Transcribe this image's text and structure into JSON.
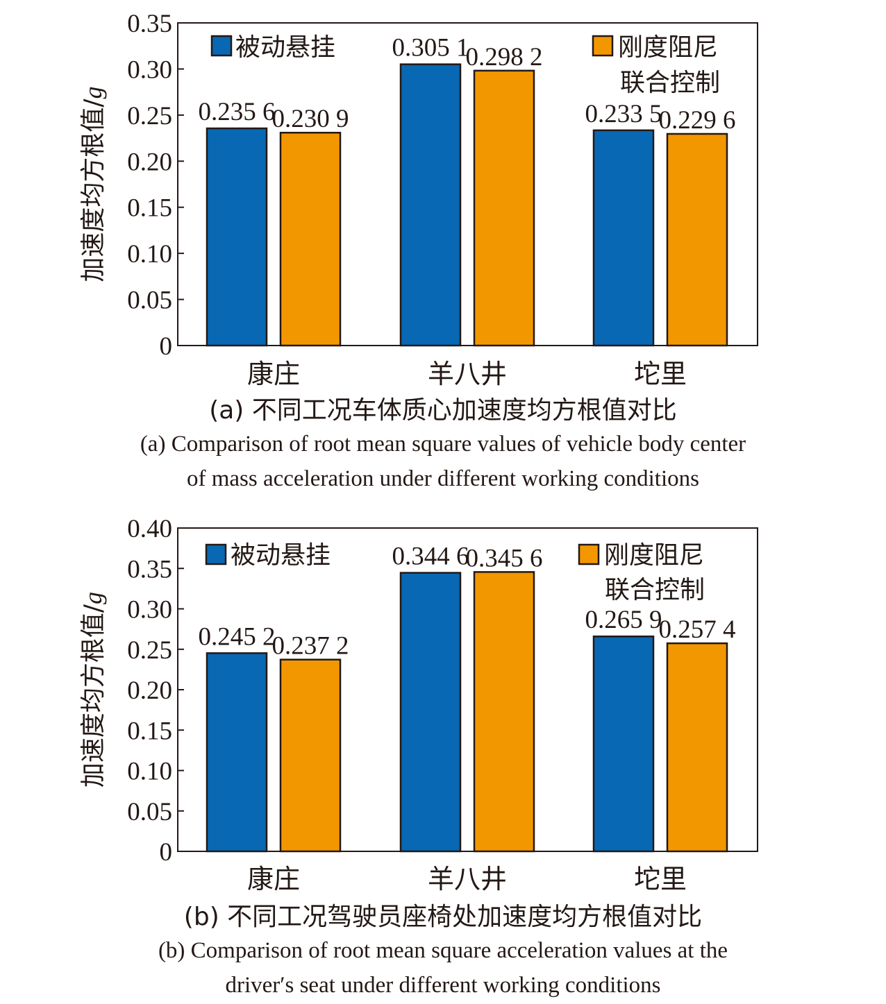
{
  "colors": {
    "passive": "#0868b3",
    "controlled": "#f39700",
    "axis": "#231815",
    "text": "#231815"
  },
  "chart_data": [
    {
      "type": "bar",
      "categories": [
        "康庄",
        "羊八井",
        "坨里"
      ],
      "series": [
        {
          "name": "被动悬挂",
          "values": [
            0.2356,
            0.3051,
            0.2335
          ],
          "labels": [
            "0.235 6",
            "0.305 1",
            "0.233 5"
          ]
        },
        {
          "name": "刚度阻尼联合控制",
          "values": [
            0.2309,
            0.2982,
            0.2296
          ],
          "labels": [
            "0.230 9",
            "0.298 2",
            "0.229 6"
          ]
        }
      ],
      "legend": {
        "items": [
          "被动悬挂",
          "刚度阻尼"
        ],
        "line2": "联合控制"
      },
      "ylabel": "加速度均方根值/",
      "ylabel_unit": "g",
      "ylim": [
        0,
        0.35
      ],
      "yticks": [
        0,
        0.05,
        0.1,
        0.15,
        0.2,
        0.25,
        0.3,
        0.35
      ],
      "ytick_labels": [
        "0",
        "0.05",
        "0.10",
        "0.15",
        "0.20",
        "0.25",
        "0.30",
        "0.35"
      ],
      "caption_cn": "(a) 不同工况车体质心加速度均方根值对比",
      "caption_en": [
        "(a) Comparison of root mean square values of vehicle body center",
        "of mass acceleration under different working conditions"
      ]
    },
    {
      "type": "bar",
      "categories": [
        "康庄",
        "羊八井",
        "坨里"
      ],
      "series": [
        {
          "name": "被动悬挂",
          "values": [
            0.2452,
            0.3446,
            0.2659
          ],
          "labels": [
            "0.245 2",
            "0.344 6",
            "0.265 9"
          ]
        },
        {
          "name": "刚度阻尼联合控制",
          "values": [
            0.2372,
            0.3456,
            0.2574
          ],
          "labels": [
            "0.237 2",
            "0.345 6",
            "0.257 4"
          ]
        }
      ],
      "legend": {
        "items": [
          "被动悬挂",
          "刚度阻尼"
        ],
        "line2": "联合控制"
      },
      "ylabel": "加速度均方根值/",
      "ylabel_unit": "g",
      "ylim": [
        0,
        0.4
      ],
      "yticks": [
        0,
        0.05,
        0.1,
        0.15,
        0.2,
        0.25,
        0.3,
        0.35,
        0.4
      ],
      "ytick_labels": [
        "0",
        "0.05",
        "0.10",
        "0.15",
        "0.20",
        "0.25",
        "0.30",
        "0.35",
        "0.40"
      ],
      "caption_cn": "(b) 不同工况驾驶员座椅处加速度均方根值对比",
      "caption_en": [
        "(b) Comparison of root mean square acceleration values at the",
        "driver′s seat under different working conditions"
      ]
    }
  ]
}
